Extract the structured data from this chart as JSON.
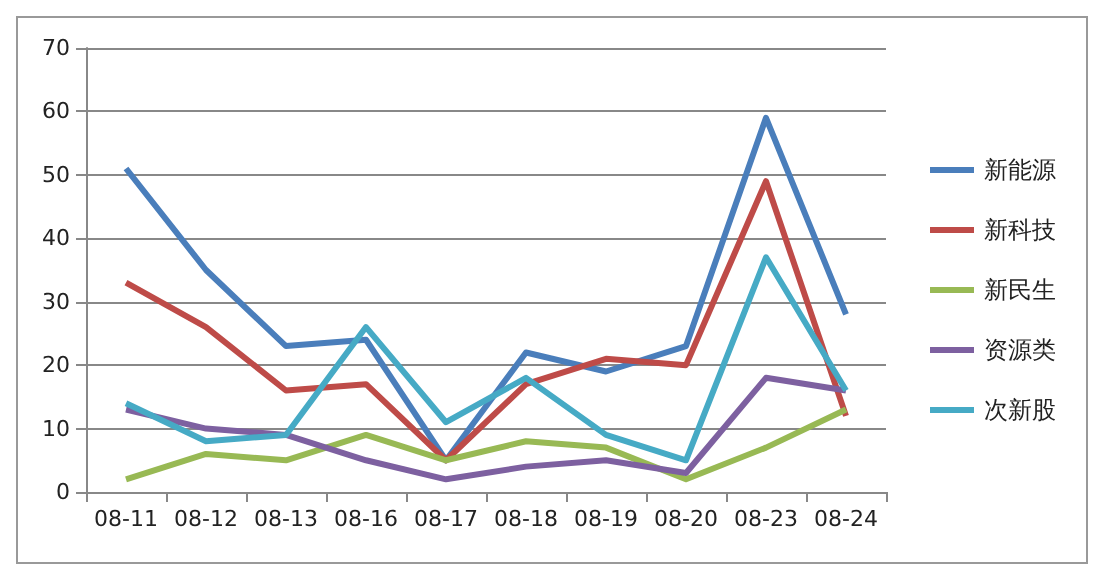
{
  "chart_data": {
    "type": "line",
    "categories": [
      "08-11",
      "08-12",
      "08-13",
      "08-16",
      "08-17",
      "08-18",
      "08-19",
      "08-20",
      "08-23",
      "08-24"
    ],
    "series": [
      {
        "name": "新能源",
        "color": "#4a7ebb",
        "values": [
          51,
          35,
          23,
          24,
          5,
          22,
          19,
          23,
          59,
          28
        ]
      },
      {
        "name": "新科技",
        "color": "#be4b48",
        "values": [
          33,
          26,
          16,
          17,
          5,
          17,
          21,
          20,
          49,
          12
        ]
      },
      {
        "name": "新民生",
        "color": "#98b954",
        "values": [
          2,
          6,
          5,
          9,
          5,
          8,
          7,
          2,
          7,
          13
        ]
      },
      {
        "name": "资源类",
        "color": "#7d60a0",
        "values": [
          13,
          10,
          9,
          5,
          2,
          4,
          5,
          3,
          18,
          16
        ]
      },
      {
        "name": "次新股",
        "color": "#46aac5",
        "values": [
          14,
          8,
          9,
          26,
          11,
          18,
          9,
          5,
          37,
          16
        ]
      }
    ],
    "ylim": [
      0,
      70
    ],
    "yticks": [
      0,
      10,
      20,
      30,
      40,
      50,
      60,
      70
    ],
    "grid": "y",
    "legend": "right",
    "marker": "none",
    "line_style": "solid"
  }
}
